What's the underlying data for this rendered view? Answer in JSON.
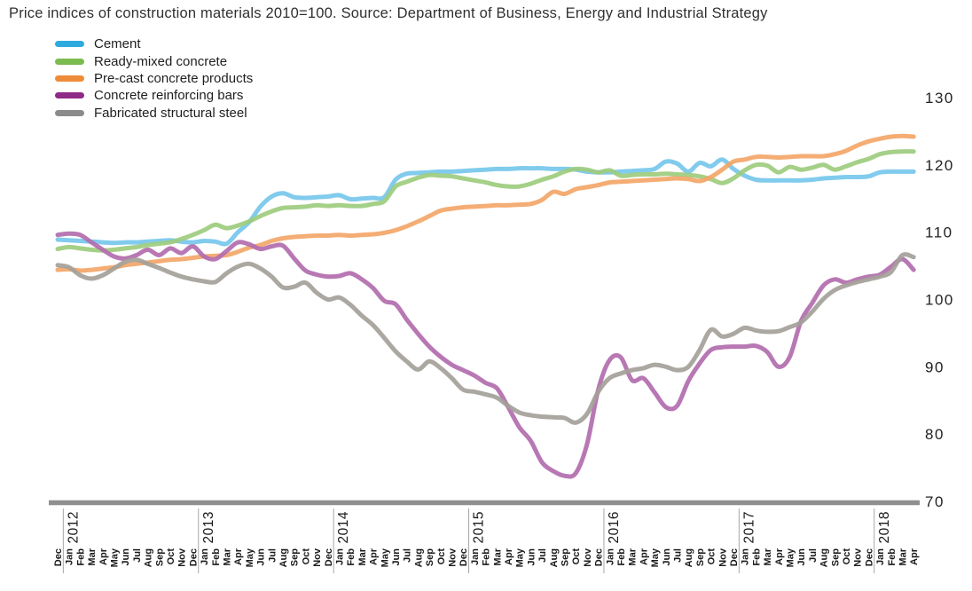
{
  "title": "Price indices of construction materials 2010=100. Source: Department of Business, Energy and Industrial Strategy",
  "colors": {
    "axis_text": "#231f20",
    "baseline": "#8f8f8f",
    "separator": "#a6a6a6",
    "title_text": "#303030"
  },
  "chart_data": {
    "type": "line",
    "title": "Price indices of construction materials 2010=100",
    "source": "Department of Business, Energy and Industrial Strategy",
    "ylim": [
      70,
      130
    ],
    "y_ticks": [
      130,
      120,
      110,
      100,
      90,
      80,
      70
    ],
    "grid": false,
    "legend_position": "top-left",
    "x_labels": [
      "Dec",
      "Jan",
      "Feb",
      "Mar",
      "Apr",
      "May",
      "Jun",
      "Jul",
      "Aug",
      "Sep",
      "Oct",
      "Nov",
      "Dec",
      "Jan",
      "Feb",
      "Mar",
      "Apr",
      "May",
      "Jun",
      "Jul",
      "Aug",
      "Sep",
      "Oct",
      "Nov",
      "Dec",
      "Jan",
      "Feb",
      "Mar",
      "Apr",
      "May",
      "Jun",
      "Jul",
      "Aug",
      "Sep",
      "Oct",
      "Nov",
      "Dec",
      "Jan",
      "Feb",
      "Mar",
      "Apr",
      "May",
      "Jun",
      "Jul",
      "Aug",
      "Sep",
      "Oct",
      "Nov",
      "Dec",
      "Jan",
      "Feb",
      "Mar",
      "Apr",
      "May",
      "Jun",
      "Jul",
      "Aug",
      "Sep",
      "Oct",
      "Nov",
      "Dec",
      "Jan",
      "Feb",
      "Mar",
      "Apr",
      "May",
      "Jun",
      "Jul",
      "Aug",
      "Sep",
      "Oct",
      "Nov",
      "Dec",
      "Jan",
      "Feb",
      "Mar",
      "Apr"
    ],
    "year_markers": [
      {
        "label": "2012",
        "month_index": 1
      },
      {
        "label": "2013",
        "month_index": 13
      },
      {
        "label": "2014",
        "month_index": 25
      },
      {
        "label": "2015",
        "month_index": 37
      },
      {
        "label": "2016",
        "month_index": 49
      },
      {
        "label": "2017",
        "month_index": 61
      },
      {
        "label": "2018",
        "month_index": 73
      }
    ],
    "series": [
      {
        "name": "Cement",
        "legend_color": "#2faadf",
        "line_color": "#76c7eb",
        "values": [
          108.9,
          108.8,
          108.7,
          108.6,
          108.5,
          108.4,
          108.5,
          108.5,
          108.6,
          108.7,
          108.8,
          108.6,
          108.5,
          108.7,
          108.6,
          108.3,
          110.0,
          111.5,
          113.8,
          115.3,
          115.8,
          115.2,
          115.1,
          115.2,
          115.3,
          115.5,
          114.9,
          115.0,
          115.1,
          115.2,
          117.8,
          118.7,
          118.8,
          118.9,
          119.0,
          119.0,
          119.1,
          119.2,
          119.3,
          119.4,
          119.4,
          119.5,
          119.5,
          119.5,
          119.4,
          119.4,
          119.3,
          119.0,
          118.9,
          118.9,
          119.0,
          119.1,
          119.2,
          119.4,
          120.5,
          120.2,
          119.0,
          120.3,
          119.8,
          120.8,
          119.4,
          118.4,
          117.8,
          117.7,
          117.7,
          117.7,
          117.7,
          117.8,
          118.0,
          118.1,
          118.2,
          118.2,
          118.3,
          118.9,
          119.0,
          119.0,
          119.0
        ]
      },
      {
        "name": "Ready-mixed concrete",
        "legend_color": "#7bbb4f",
        "line_color": "#9dcc7e",
        "values": [
          107.5,
          107.8,
          107.6,
          107.4,
          107.3,
          107.4,
          107.6,
          107.8,
          108.1,
          108.3,
          108.5,
          109.0,
          109.6,
          110.3,
          111.1,
          110.6,
          111.0,
          111.6,
          112.4,
          113.1,
          113.6,
          113.7,
          113.8,
          114.0,
          113.9,
          114.0,
          113.9,
          113.9,
          114.2,
          114.6,
          116.8,
          117.5,
          118.1,
          118.5,
          118.4,
          118.3,
          118.0,
          117.7,
          117.4,
          117.0,
          116.8,
          116.8,
          117.2,
          117.8,
          118.3,
          119.0,
          119.4,
          119.3,
          118.9,
          119.2,
          118.4,
          118.5,
          118.6,
          118.6,
          118.7,
          118.6,
          118.5,
          118.3,
          117.9,
          117.3,
          118.0,
          119.2,
          120.0,
          119.9,
          118.9,
          119.7,
          119.3,
          119.6,
          120.0,
          119.3,
          119.8,
          120.4,
          120.9,
          121.6,
          121.9,
          122.0,
          122.0
        ]
      },
      {
        "name": "Pre-cast concrete products",
        "legend_color": "#ee8b39",
        "line_color": "#f3a668",
        "values": [
          104.4,
          104.5,
          104.3,
          104.4,
          104.6,
          104.8,
          105.1,
          105.3,
          105.5,
          105.7,
          105.9,
          106.0,
          106.2,
          106.4,
          106.5,
          106.6,
          107.1,
          107.7,
          108.1,
          108.7,
          109.1,
          109.3,
          109.4,
          109.5,
          109.5,
          109.6,
          109.5,
          109.6,
          109.7,
          109.9,
          110.3,
          110.9,
          111.6,
          112.4,
          113.2,
          113.5,
          113.7,
          113.8,
          113.9,
          114.0,
          114.0,
          114.1,
          114.2,
          114.8,
          116.0,
          115.7,
          116.4,
          116.7,
          117.0,
          117.4,
          117.5,
          117.6,
          117.7,
          117.8,
          117.9,
          118.0,
          117.9,
          117.6,
          118.2,
          119.3,
          120.5,
          120.8,
          121.2,
          121.2,
          121.1,
          121.2,
          121.3,
          121.3,
          121.3,
          121.6,
          122.1,
          122.9,
          123.5,
          123.9,
          124.2,
          124.3,
          124.2
        ]
      },
      {
        "name": "Concrete reinforcing bars",
        "legend_color": "#8e2a88",
        "line_color": "#b26cae",
        "values": [
          109.6,
          109.8,
          109.6,
          108.5,
          107.4,
          106.4,
          106.1,
          106.6,
          107.4,
          106.6,
          107.6,
          106.9,
          107.9,
          106.4,
          106.0,
          107.2,
          108.5,
          108.2,
          107.5,
          107.9,
          108.0,
          106.1,
          104.3,
          103.7,
          103.4,
          103.5,
          103.9,
          103.0,
          101.7,
          99.8,
          99.3,
          97.0,
          94.9,
          93.0,
          91.5,
          90.3,
          89.5,
          88.7,
          87.6,
          86.8,
          84.0,
          81.0,
          79.0,
          75.8,
          74.5,
          73.8,
          74.2,
          78.5,
          86.6,
          91.0,
          91.4,
          88.0,
          88.3,
          86.2,
          84.0,
          84.2,
          87.9,
          90.5,
          92.5,
          92.9,
          93.0,
          93.0,
          93.1,
          92.2,
          90.0,
          91.5,
          96.8,
          99.5,
          102.1,
          103.0,
          102.5,
          103.0,
          103.4,
          103.7,
          104.9,
          106.0,
          104.4
        ]
      },
      {
        "name": "Fabricated structural steel",
        "legend_color": "#8b8b8b",
        "line_color": "#a4a099",
        "values": [
          105.1,
          104.8,
          103.6,
          103.1,
          103.6,
          104.6,
          105.6,
          105.9,
          105.3,
          104.7,
          104.0,
          103.4,
          103.0,
          102.7,
          102.6,
          103.9,
          104.9,
          105.3,
          104.6,
          103.4,
          101.8,
          101.9,
          102.5,
          101.0,
          100.0,
          100.3,
          99.2,
          97.6,
          96.2,
          94.3,
          92.3,
          90.8,
          89.6,
          90.8,
          89.8,
          88.3,
          86.6,
          86.3,
          85.9,
          85.4,
          84.2,
          83.2,
          82.8,
          82.6,
          82.5,
          82.4,
          81.7,
          83.0,
          86.3,
          88.3,
          89.0,
          89.5,
          89.8,
          90.3,
          90.0,
          89.5,
          90.0,
          92.5,
          95.5,
          94.5,
          94.9,
          95.8,
          95.4,
          95.2,
          95.3,
          95.9,
          96.6,
          98.2,
          100.1,
          101.4,
          102.1,
          102.6,
          103.0,
          103.4,
          104.1,
          106.6,
          106.3
        ]
      }
    ]
  }
}
